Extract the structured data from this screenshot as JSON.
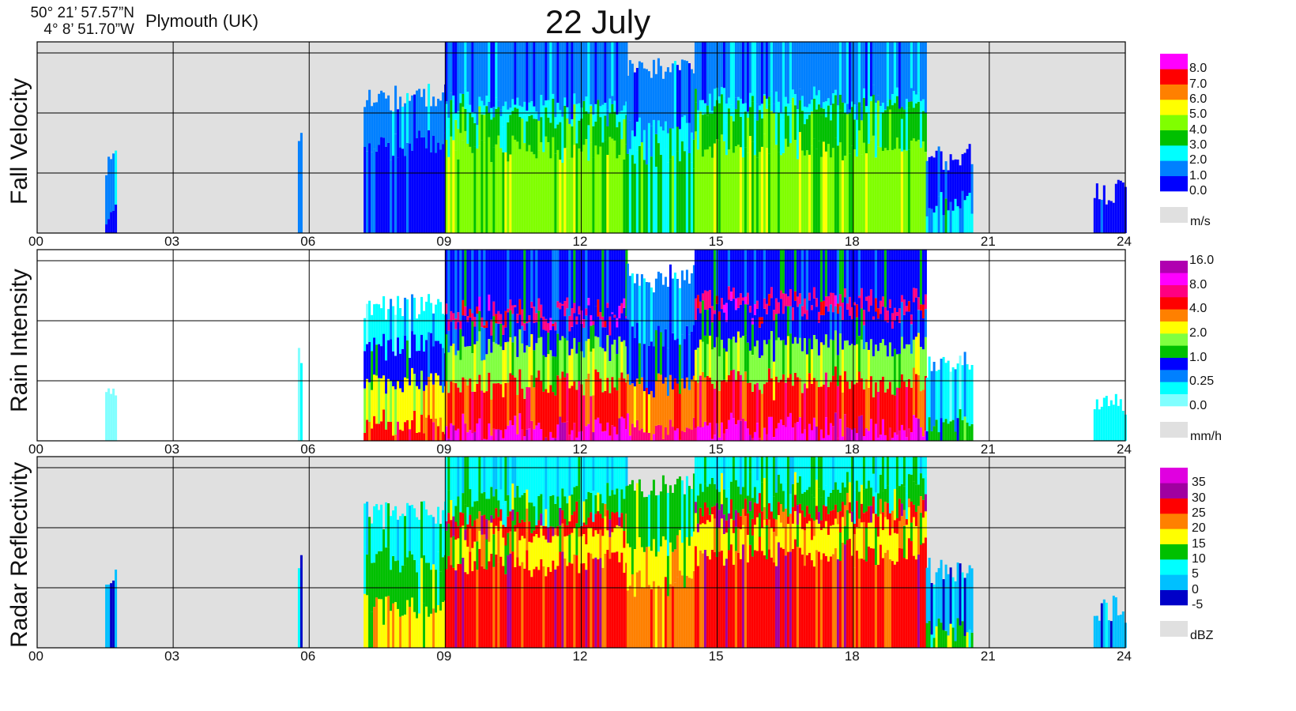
{
  "header": {
    "lat": "50° 21’ 57.57”N",
    "lon": "4°  8’ 51.70”W",
    "location": "Plymouth (UK)",
    "title": "22 July"
  },
  "chart_data": [
    {
      "type": "heatmap",
      "name": "Fall Velocity",
      "ylabel": "Fall Velocity",
      "xlim": [
        0,
        24
      ],
      "xticks": [
        "00",
        "03",
        "06",
        "09",
        "12",
        "15",
        "18",
        "21",
        "24"
      ],
      "background": "#e0e0e0",
      "colorbar": {
        "unit": "m/s",
        "colors": [
          "#0000ff",
          "#0080ff",
          "#00ffff",
          "#00c000",
          "#80ff00",
          "#ffff00",
          "#ff8000",
          "#ff0000",
          "#ff00ff"
        ],
        "labels": [
          "0.0",
          "1.0",
          "2.0",
          "3.0",
          "4.0",
          "5.0",
          "6.0",
          "7.0",
          "8.0"
        ],
        "nodata_color": "#e0e0e0"
      },
      "segments": [
        {
          "from": 1.5,
          "to": 1.75,
          "layers": [
            [
              0.08,
              0.0,
              0
            ],
            [
              0.38,
              0.0,
              1
            ]
          ]
        },
        {
          "from": 5.75,
          "to": 5.85,
          "layers": [
            [
              0.45,
              0.0,
              1
            ]
          ]
        },
        {
          "from": 7.2,
          "to": 9.0,
          "layers": [
            [
              0.45,
              0
            ],
            [
              0.7,
              1
            ]
          ]
        },
        {
          "from": 9.0,
          "to": 13.0,
          "layers": [
            [
              0.45,
              4
            ],
            [
              0.62,
              3
            ],
            [
              0.68,
              2
            ],
            [
              1.0,
              1
            ]
          ]
        },
        {
          "from": 13.0,
          "to": 14.5,
          "layers": [
            [
              0.4,
              3
            ],
            [
              0.55,
              2
            ],
            [
              0.85,
              1
            ]
          ]
        },
        {
          "from": 14.5,
          "to": 19.6,
          "layers": [
            [
              0.45,
              4
            ],
            [
              0.65,
              3
            ],
            [
              0.7,
              2
            ],
            [
              1.0,
              1
            ]
          ]
        },
        {
          "from": 19.6,
          "to": 20.6,
          "layers": [
            [
              0.15,
              2
            ],
            [
              0.4,
              0
            ]
          ]
        },
        {
          "from": 23.3,
          "to": 24.0,
          "layers": [
            [
              0.2,
              0
            ]
          ]
        }
      ]
    },
    {
      "type": "heatmap",
      "name": "Rain Intensity",
      "ylabel": "Rain Intensity",
      "xlim": [
        0,
        24
      ],
      "xticks": [
        "00",
        "03",
        "06",
        "09",
        "12",
        "15",
        "18",
        "21",
        "24"
      ],
      "background": "#ffffff",
      "colorbar": {
        "unit": "mm/h",
        "colors": [
          "#80ffff",
          "#00ffff",
          "#0080ff",
          "#0000ff",
          "#00c000",
          "#80ff40",
          "#ffff00",
          "#ff8000",
          "#ff0000",
          "#ff0080",
          "#ff00ff",
          "#b000b0"
        ],
        "labels": [
          "0.0",
          "0.25",
          "1.0",
          "2.0",
          "4.0",
          "8.0",
          "16.0"
        ],
        "nodata_color": "#e0e0e0"
      },
      "segments": [
        {
          "from": 1.5,
          "to": 1.75,
          "layers": [
            [
              0.3,
              0
            ]
          ]
        },
        {
          "from": 5.75,
          "to": 5.85,
          "layers": [
            [
              0.45,
              0
            ]
          ]
        },
        {
          "from": 7.2,
          "to": 9.0,
          "layers": [
            [
              0.08,
              8
            ],
            [
              0.3,
              6
            ],
            [
              0.5,
              3
            ],
            [
              0.7,
              1
            ]
          ]
        },
        {
          "from": 9.0,
          "to": 13.0,
          "layers": [
            [
              0.06,
              10
            ],
            [
              0.3,
              8
            ],
            [
              0.5,
              5
            ],
            [
              0.63,
              3
            ],
            [
              0.68,
              9
            ],
            [
              1.0,
              3
            ]
          ]
        },
        {
          "from": 13.0,
          "to": 14.5,
          "layers": [
            [
              0.06,
              9
            ],
            [
              0.3,
              7
            ],
            [
              0.55,
              3
            ],
            [
              0.85,
              2
            ]
          ]
        },
        {
          "from": 14.5,
          "to": 19.6,
          "layers": [
            [
              0.06,
              10
            ],
            [
              0.3,
              8
            ],
            [
              0.5,
              5
            ],
            [
              0.67,
              3
            ],
            [
              0.73,
              9
            ],
            [
              1.0,
              3
            ]
          ]
        },
        {
          "from": 19.6,
          "to": 20.6,
          "layers": [
            [
              0.1,
              4
            ],
            [
              0.4,
              1
            ]
          ]
        },
        {
          "from": 23.3,
          "to": 24.0,
          "layers": [
            [
              0.2,
              1
            ]
          ]
        }
      ]
    },
    {
      "type": "heatmap",
      "name": "Radar Reflectivity",
      "ylabel": "Radar Reflectivity",
      "xlim": [
        0,
        24
      ],
      "xticks": [
        "00",
        "03",
        "06",
        "09",
        "12",
        "15",
        "18",
        "21",
        "24"
      ],
      "background": "#e0e0e0",
      "colorbar": {
        "unit": "dBZ",
        "colors": [
          "#0000c8",
          "#00c0ff",
          "#00ffff",
          "#00c000",
          "#ffff00",
          "#ff8000",
          "#ff0000",
          "#a000a0",
          "#e000e0"
        ],
        "labels": [
          "-5",
          "0",
          "5",
          "10",
          "15",
          "20",
          "25",
          "30",
          "35"
        ],
        "nodata_color": "#e0e0e0"
      },
      "segments": [
        {
          "from": 1.5,
          "to": 1.75,
          "layers": [
            [
              0.35,
              1
            ]
          ]
        },
        {
          "from": 5.75,
          "to": 5.85,
          "layers": [
            [
              0.45,
              1
            ]
          ]
        },
        {
          "from": 7.2,
          "to": 9.0,
          "layers": [
            [
              0.2,
              4
            ],
            [
              0.45,
              3
            ],
            [
              0.7,
              2
            ]
          ]
        },
        {
          "from": 9.0,
          "to": 13.0,
          "layers": [
            [
              0.45,
              6
            ],
            [
              0.6,
              4
            ],
            [
              0.68,
              6
            ],
            [
              0.8,
              3
            ],
            [
              1.0,
              2
            ]
          ]
        },
        {
          "from": 13.0,
          "to": 14.5,
          "layers": [
            [
              0.35,
              5
            ],
            [
              0.55,
              4
            ],
            [
              0.85,
              3
            ]
          ]
        },
        {
          "from": 14.5,
          "to": 19.6,
          "layers": [
            [
              0.5,
              6
            ],
            [
              0.65,
              4
            ],
            [
              0.73,
              6
            ],
            [
              0.85,
              3
            ],
            [
              1.0,
              2
            ]
          ]
        },
        {
          "from": 19.6,
          "to": 20.6,
          "layers": [
            [
              0.1,
              3
            ],
            [
              0.4,
              1
            ]
          ]
        },
        {
          "from": 23.3,
          "to": 24.0,
          "layers": [
            [
              0.2,
              1
            ]
          ]
        }
      ]
    }
  ]
}
